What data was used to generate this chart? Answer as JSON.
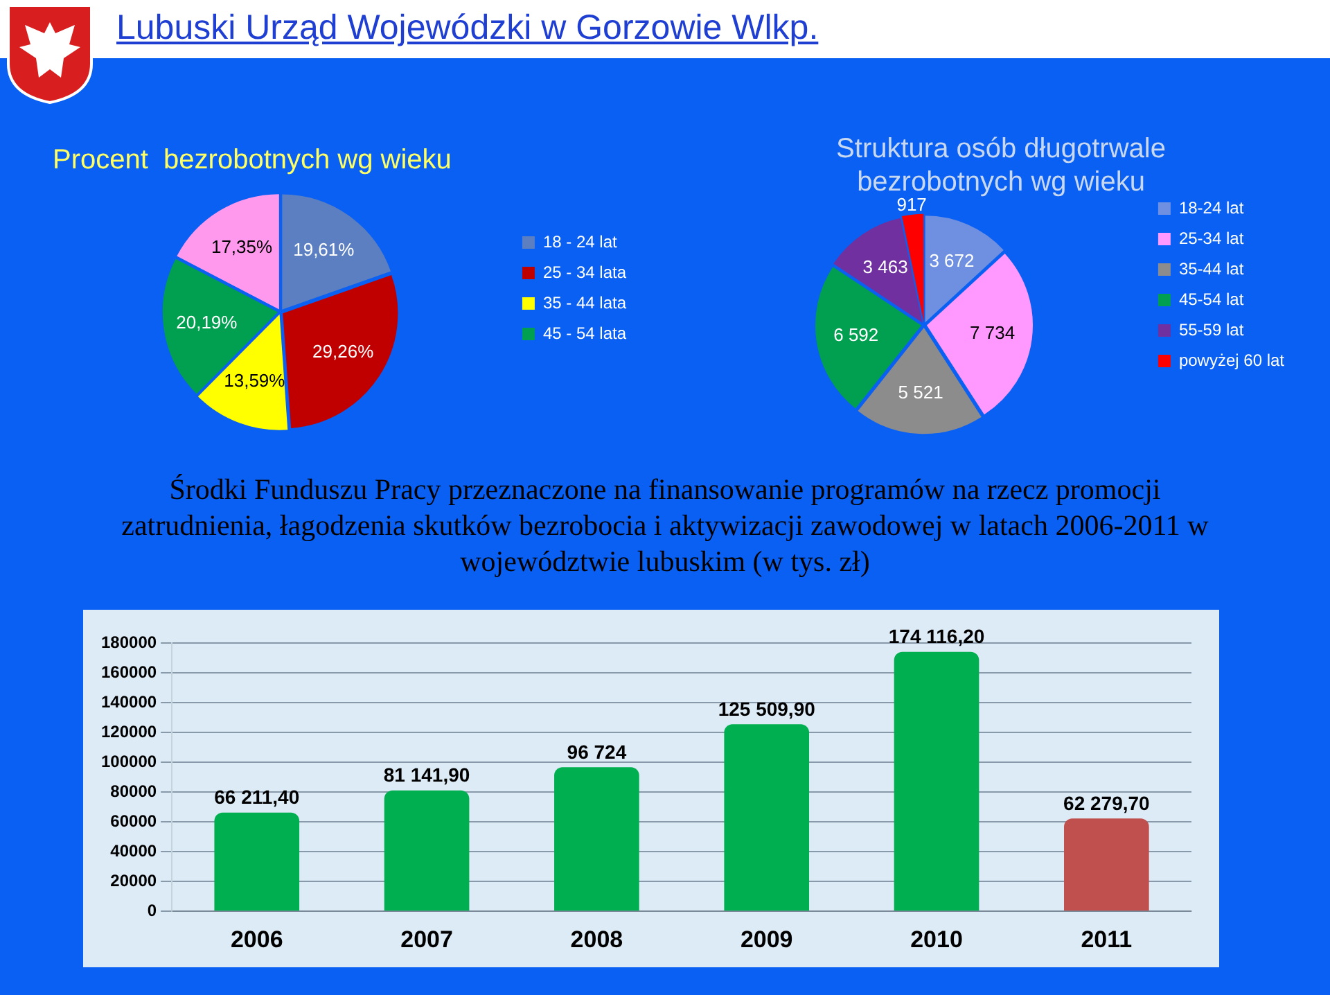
{
  "chart_data": [
    {
      "type": "pie",
      "title": "Procent  bezrobotnych wg wieku",
      "annotations": [
        "Lubuski Urząd Wojewódzki w Gorzowie Wlkp."
      ],
      "categories": [
        "18 - 24 lat",
        "25 - 34 lata",
        "35 - 44 lata",
        "45 - 54 lata",
        null
      ],
      "values": [
        19.61,
        29.26,
        13.59,
        20.19,
        17.35
      ],
      "value_labels": [
        "19,61%",
        "29,26%",
        "13,59%",
        "20,19%",
        "17,35%"
      ],
      "colors": [
        "#5b7fc0",
        "#c00000",
        "#ffff00",
        "#00a050",
        "#ff99ee"
      ],
      "legend": "right"
    },
    {
      "type": "pie",
      "title": "Struktura osób długotrwale bezrobotnych wg wieku",
      "categories": [
        "18-24 lat",
        "25-34 lat",
        "35-44 lat",
        "45-54 lat",
        "55-59 lat",
        "powyżej 60 lat"
      ],
      "values": [
        3672,
        7734,
        5521,
        6592,
        3463,
        917
      ],
      "value_labels": [
        "3 672",
        "7 734",
        "5 521",
        "6 592",
        "3 463",
        "917"
      ],
      "colors": [
        "#6f8fe0",
        "#ff99ff",
        "#8c8c8c",
        "#00a050",
        "#7030a0",
        "#ff0000"
      ],
      "legend": "right"
    },
    {
      "type": "bar",
      "title": "Środki Funduszu Pracy przeznaczone na finansowanie programów na rzecz promocji zatrudnienia, łagodzenia skutków bezrobocia i aktywizacji zawodowej w latach 2006-2011 w województwie lubuskim (w tys. zł)",
      "categories": [
        "2006",
        "2007",
        "2008",
        "2009",
        "2010",
        "2011"
      ],
      "values": [
        66211.4,
        81141.9,
        96724,
        125509.9,
        174116.2,
        62279.7
      ],
      "value_labels": [
        "66 211,40",
        "81 141,90",
        "96 724",
        "125 509,90",
        "174 116,20",
        "62 279,70"
      ],
      "colors": [
        "#00b050",
        "#00b050",
        "#00b050",
        "#00b050",
        "#00b050",
        "#c0504d"
      ],
      "ylim": [
        0,
        180000
      ],
      "yticks": [
        0,
        20000,
        40000,
        60000,
        80000,
        100000,
        120000,
        140000,
        160000,
        180000
      ],
      "grid": "y",
      "legend": false
    }
  ]
}
